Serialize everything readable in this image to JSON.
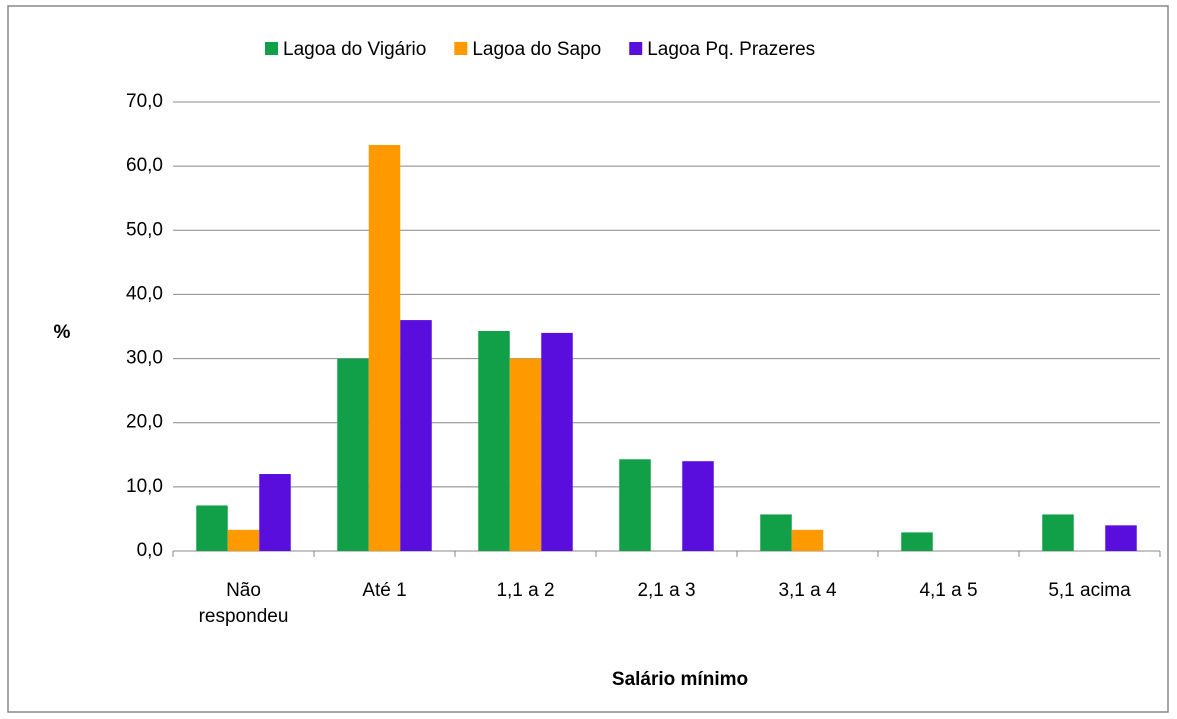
{
  "chart_data": {
    "type": "bar",
    "categories": [
      "Não respondeu",
      "Até 1",
      "1,1 a 2",
      "2,1 a 3",
      "3,1 a 4",
      "4,1 a 5",
      "5,1 acima"
    ],
    "series": [
      {
        "name": "Lagoa do Vigário",
        "color": "#119f47",
        "values": [
          7.1,
          30.0,
          34.3,
          14.3,
          5.7,
          2.9,
          5.7
        ]
      },
      {
        "name": "Lagoa do Sapo",
        "color": "#ff9900",
        "values": [
          3.3,
          63.3,
          30.0,
          0,
          3.3,
          0,
          0
        ]
      },
      {
        "name": "Lagoa Pq. Prazeres",
        "color": "#5a0edd",
        "values": [
          12.0,
          36.0,
          34.0,
          14.0,
          0,
          0,
          4.0
        ]
      }
    ],
    "ylabel": "%",
    "xlabel": "Salário mínimo",
    "ylim": [
      0,
      70
    ],
    "yticks": [
      {
        "value": 0,
        "label": "0,0"
      },
      {
        "value": 10,
        "label": "10,0"
      },
      {
        "value": 20,
        "label": "20,0"
      },
      {
        "value": 30,
        "label": "30,0"
      },
      {
        "value": 40,
        "label": "40,0"
      },
      {
        "value": 50,
        "label": "50,0"
      },
      {
        "value": 60,
        "label": "60,0"
      },
      {
        "value": 70,
        "label": "70,0"
      }
    ],
    "grid": true,
    "legend": "top"
  }
}
